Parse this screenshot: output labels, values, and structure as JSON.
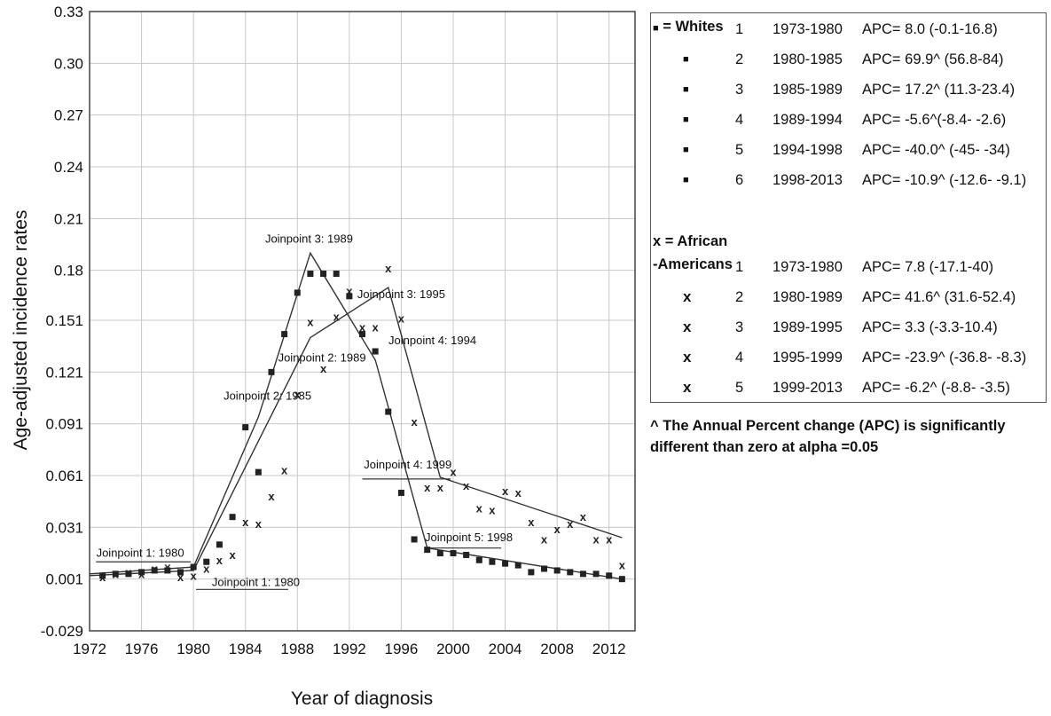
{
  "chart_data": {
    "type": "scatter",
    "xlabel": "Year of diagnosis",
    "ylabel": "Age-adjusted incidence rates",
    "xlim": [
      1972,
      2014
    ],
    "ylim": [
      -0.029,
      0.33
    ],
    "xticks": [
      "1972",
      "1976",
      "1980",
      "1984",
      "1988",
      "1992",
      "1996",
      "2000",
      "2004",
      "2008",
      "2012"
    ],
    "yticks": [
      "0.33",
      "0.30",
      "0.27",
      "0.24",
      "0.21",
      "0.18",
      "0.151",
      "0.121",
      "0.091",
      "0.061",
      "0.031",
      "0.001",
      "-0.029"
    ],
    "grid": true,
    "series": [
      {
        "name": "Whites",
        "marker": "square",
        "x": [
          1973,
          1974,
          1975,
          1976,
          1977,
          1978,
          1979,
          1980,
          1981,
          1982,
          1983,
          1984,
          1985,
          1986,
          1987,
          1988,
          1989,
          1990,
          1991,
          1992,
          1993,
          1994,
          1995,
          1996,
          1997,
          1998,
          1999,
          2000,
          2001,
          2002,
          2003,
          2004,
          2005,
          2006,
          2007,
          2008,
          2009,
          2010,
          2011,
          2012,
          2013
        ],
        "y": [
          0.003,
          0.004,
          0.004,
          0.005,
          0.006,
          0.006,
          0.005,
          0.008,
          0.011,
          0.021,
          0.037,
          0.089,
          0.063,
          0.121,
          0.143,
          0.167,
          0.178,
          0.178,
          0.178,
          0.165,
          0.143,
          0.133,
          0.098,
          0.051,
          0.024,
          0.018,
          0.016,
          0.016,
          0.015,
          0.012,
          0.011,
          0.01,
          0.009,
          0.005,
          0.007,
          0.006,
          0.005,
          0.004,
          0.004,
          0.003,
          0.001
        ]
      },
      {
        "name": "African-Americans",
        "marker": "x",
        "x": [
          1973,
          1974,
          1975,
          1976,
          1977,
          1978,
          1979,
          1980,
          1981,
          1982,
          1983,
          1984,
          1985,
          1986,
          1987,
          1988,
          1989,
          1990,
          1991,
          1992,
          1993,
          1994,
          1995,
          1996,
          1997,
          1998,
          1999,
          2000,
          2001,
          2002,
          2003,
          2004,
          2005,
          2006,
          2007,
          2008,
          2009,
          2010,
          2011,
          2012,
          2013
        ],
        "y": [
          0.002,
          0.004,
          0.005,
          0.004,
          0.007,
          0.008,
          0.002,
          0.003,
          0.007,
          0.012,
          0.015,
          0.034,
          0.033,
          0.049,
          0.064,
          0.108,
          0.15,
          0.123,
          0.153,
          0.168,
          0.147,
          0.147,
          0.181,
          0.152,
          0.092,
          0.054,
          0.054,
          0.063,
          0.055,
          0.042,
          0.041,
          0.052,
          0.051,
          0.034,
          0.024,
          0.03,
          0.033,
          0.037,
          0.024,
          0.024,
          0.009
        ]
      }
    ],
    "fit_lines": [
      {
        "name": "Whites joinpoint fit",
        "x": [
          1972,
          1980,
          1985,
          1989,
          1994,
          1998,
          2013
        ],
        "y": [
          0.004,
          0.008,
          0.095,
          0.19,
          0.128,
          0.019,
          0.001
        ]
      },
      {
        "name": "African-Americans joinpoint fit",
        "x": [
          1972,
          1980,
          1989,
          1995,
          1999,
          2013
        ],
        "y": [
          0.003,
          0.006,
          0.141,
          0.17,
          0.06,
          0.025
        ]
      }
    ],
    "annotations": [
      {
        "text": "Joinpoint 1: 1980",
        "x": 1975.9,
        "y": 0.014,
        "line": [
          1972.5,
          0.011,
          1979.8,
          0.011
        ]
      },
      {
        "text": "Joinpoint 1: 1980",
        "x": 1984.8,
        "y": -0.003,
        "line": [
          1980.2,
          -0.005,
          1987.3,
          -0.005
        ]
      },
      {
        "text": "Joinpoint 2: 1985",
        "x": 1985.7,
        "y": 0.105
      },
      {
        "text": "Joinpoint 2: 1989",
        "x": 1989.9,
        "y": 0.127
      },
      {
        "text": "Joinpoint 3: 1989",
        "x": 1988.9,
        "y": 0.196
      },
      {
        "text": "Joinpoint 3: 1995",
        "x": 1996.0,
        "y": 0.164
      },
      {
        "text": "Joinpoint 4: 1994",
        "x": 1998.4,
        "y": 0.137
      },
      {
        "text": "Joinpoint 4: 1999",
        "x": 1996.5,
        "y": 0.065,
        "line": [
          1993.0,
          0.059,
          1999.8,
          0.059
        ]
      },
      {
        "text": "Joinpoint 5: 1998",
        "x": 2001.2,
        "y": 0.023,
        "line": [
          1998.2,
          0.019,
          2003.7,
          0.019
        ]
      }
    ]
  },
  "legend": {
    "whites_label": "= Whites",
    "whites_marker": "■",
    "whites_rows": [
      {
        "n": "1",
        "years": "1973-1980",
        "apc": "APC= 8.0 (-0.1-16.8)"
      },
      {
        "n": "2",
        "years": "1980-1985",
        "apc": "APC= 69.9^ (56.8-84)"
      },
      {
        "n": "3",
        "years": "1985-1989",
        "apc": "APC= 17.2^ (11.3-23.4)"
      },
      {
        "n": "4",
        "years": "1989-1994",
        "apc": "APC= -5.6^(-8.4- -2.6)"
      },
      {
        "n": "5",
        "years": "1994-1998",
        "apc": "APC= -40.0^ (-45- -34)"
      },
      {
        "n": "6",
        "years": "1998-2013",
        "apc": "APC= -10.9^ (-12.6- -9.1)"
      }
    ],
    "aa_label_line1": "x = African",
    "aa_label_line2": "-Americans",
    "aa_marker": "x",
    "aa_rows": [
      {
        "n": "1",
        "years": "1973-1980",
        "apc": "APC= 7.8 (-17.1-40)"
      },
      {
        "n": "2",
        "years": "1980-1989",
        "apc": "APC= 41.6^ (31.6-52.4)"
      },
      {
        "n": "3",
        "years": "1989-1995",
        "apc": "APC= 3.3 (-3.3-10.4)"
      },
      {
        "n": "4",
        "years": "1995-1999",
        "apc": "APC= -23.9^ (-36.8- -8.3)"
      },
      {
        "n": "5",
        "years": "1999-2013",
        "apc": "APC= -6.2^ (-8.8- -3.5)"
      }
    ]
  },
  "note": "^ The Annual Percent change (APC) is significantly different than zero at alpha =0.05"
}
